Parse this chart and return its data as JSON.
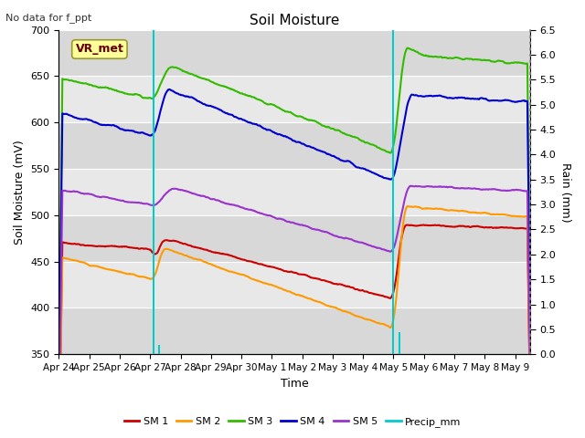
{
  "title": "Soil Moisture",
  "subtitle": "No data for f_ppt",
  "xlabel": "Time",
  "ylabel_left": "Soil Moisture (mV)",
  "ylabel_right": "Rain (mm)",
  "ylim_left": [
    350,
    700
  ],
  "ylim_right": [
    0.0,
    6.5
  ],
  "yticks_left": [
    350,
    400,
    450,
    500,
    550,
    600,
    650,
    700
  ],
  "yticks_right": [
    0.0,
    0.5,
    1.0,
    1.5,
    2.0,
    2.5,
    3.0,
    3.5,
    4.0,
    4.5,
    5.0,
    5.5,
    6.0,
    6.5
  ],
  "background_color": "#ffffff",
  "plot_bg_color": "#e8e8e8",
  "grid_color": "#ffffff",
  "colors": {
    "SM1": "#cc0000",
    "SM2": "#ff9900",
    "SM3": "#33bb00",
    "SM4": "#0000cc",
    "SM5": "#9933cc",
    "Precip": "#00cccc"
  },
  "vr_met_box_color": "#ffff99",
  "vr_met_text_color": "#660000",
  "tick_labels": [
    "Apr 24",
    "Apr 25",
    "Apr 26",
    "Apr 27",
    "Apr 28",
    "Apr 29",
    "Apr 30",
    "May 1",
    "May 2",
    "May 3",
    "May 4",
    "May 5",
    "May 6",
    "May 7",
    "May 8",
    "May 9"
  ],
  "shaded_bands": [
    [
      550,
      650
    ]
  ],
  "precip_day1": 3.12,
  "precip_day2": 11.0,
  "precip_small1": 3.3,
  "precip_small2": 11.2
}
